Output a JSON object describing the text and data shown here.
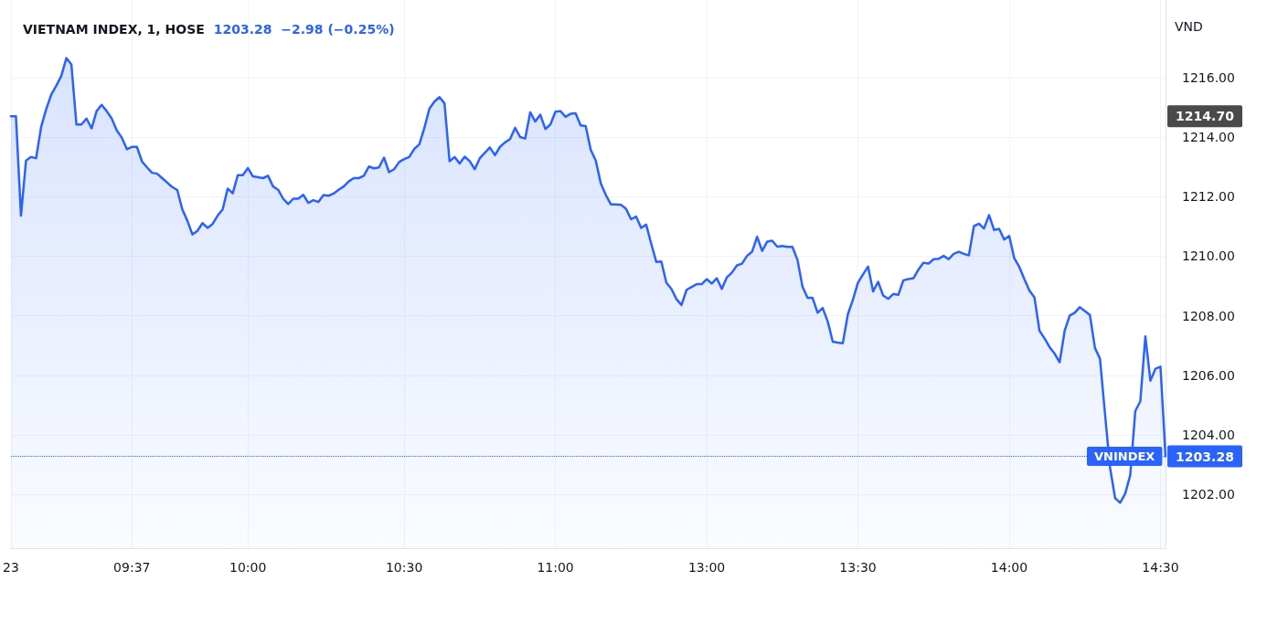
{
  "chart_data": {
    "type": "area",
    "title": "VIETNAM INDEX, 1, HOSE",
    "subtitle": "1203.28  −2.98 (−0.25%)",
    "ylabel": "VND",
    "categories": [
      "23",
      null,
      null,
      null,
      null,
      null,
      null,
      null,
      null,
      null,
      null,
      null,
      null,
      null,
      null,
      null,
      null,
      null,
      null,
      null,
      null,
      null,
      null,
      null,
      "09:37",
      null,
      null,
      null,
      null,
      null,
      null,
      null,
      null,
      null,
      null,
      null,
      null,
      null,
      null,
      null,
      null,
      null,
      null,
      null,
      null,
      null,
      null,
      "10:00",
      null,
      null,
      null,
      null,
      null,
      null,
      null,
      null,
      null,
      null,
      null,
      null,
      null,
      null,
      null,
      null,
      null,
      null,
      null,
      null,
      null,
      null,
      null,
      null,
      null,
      null,
      null,
      null,
      null,
      null,
      "10:30",
      null,
      null,
      null,
      null,
      null,
      null,
      null,
      null,
      null,
      null,
      null,
      null,
      null,
      null,
      null,
      null,
      null,
      null,
      null,
      null,
      null,
      null,
      null,
      null,
      null,
      null,
      null,
      null,
      null,
      "11:00",
      null,
      null,
      null,
      null,
      null,
      null,
      null,
      null,
      null,
      null,
      null,
      null,
      null,
      null,
      null,
      null,
      null,
      null,
      null,
      null,
      null,
      null,
      null,
      null,
      null,
      null,
      null,
      null,
      null,
      "13:00",
      null,
      null,
      null,
      null,
      null,
      null,
      null,
      null,
      null,
      null,
      null,
      null,
      null,
      null,
      null,
      null,
      null,
      null,
      null,
      null,
      null,
      null,
      null,
      null,
      null,
      null,
      null,
      null,
      null,
      "13:30",
      null,
      null,
      null,
      null,
      null,
      null,
      null,
      null,
      null,
      null,
      null,
      null,
      null,
      null,
      null,
      null,
      null,
      null,
      null,
      null,
      null,
      null,
      null,
      null,
      null,
      null,
      null,
      null,
      null,
      "14:00",
      null,
      null,
      null,
      null,
      null,
      null,
      null,
      null,
      null,
      null,
      null,
      null,
      null,
      null,
      null,
      null,
      null,
      null,
      null,
      null,
      null,
      null,
      null,
      null,
      null,
      null,
      null,
      null,
      null,
      "14:30",
      null
    ],
    "series": [
      {
        "color": "#2962ff",
        "values": [
          1214.7,
          1214.7,
          1211.36,
          1213.21,
          1213.33,
          1213.29,
          1214.34,
          1214.93,
          1215.42,
          1215.72,
          1216.05,
          1216.65,
          1216.44,
          1214.42,
          1214.42,
          1214.62,
          1214.29,
          1214.87,
          1215.08,
          1214.87,
          1214.62,
          1214.22,
          1213.98,
          1213.59,
          1213.67,
          1213.67,
          1213.18,
          1212.98,
          1212.8,
          1212.77,
          1212.62,
          1212.47,
          1212.32,
          1212.22,
          1211.57,
          1211.19,
          1210.73,
          1210.85,
          1211.11,
          1210.95,
          1211.08,
          1211.36,
          1211.57,
          1212.27,
          1212.11,
          1212.72,
          1212.72,
          1212.96,
          1212.68,
          1212.65,
          1212.62,
          1212.7,
          1212.34,
          1212.23,
          1211.93,
          1211.75,
          1211.93,
          1211.93,
          1212.06,
          1211.79,
          1211.88,
          1211.82,
          1212.05,
          1212.03,
          1212.1,
          1212.23,
          1212.34,
          1212.51,
          1212.62,
          1212.62,
          1212.7,
          1213.01,
          1212.95,
          1212.98,
          1213.31,
          1212.82,
          1212.92,
          1213.16,
          1213.26,
          1213.33,
          1213.6,
          1213.75,
          1214.3,
          1214.95,
          1215.19,
          1215.34,
          1215.13,
          1213.19,
          1213.33,
          1213.11,
          1213.34,
          1213.19,
          1212.92,
          1213.29,
          null,
          1213.65,
          1213.39,
          1213.67,
          1213.82,
          1213.93,
          1214.31,
          1214.0,
          1213.95,
          1214.83,
          1214.52,
          1214.75,
          1214.27,
          1214.42,
          1214.85,
          1214.87,
          1214.68,
          1214.78,
          1214.8,
          1214.39,
          1214.37,
          1213.57,
          1213.21,
          1212.44,
          1212.05,
          1211.74,
          1211.74,
          1211.72,
          1211.59,
          1211.24,
          1211.33,
          1210.95,
          1211.06,
          1210.42,
          1209.81,
          1209.82,
          1209.11,
          1208.9,
          1208.56,
          1208.36,
          1208.87,
          null,
          1209.06,
          1209.06,
          1209.23,
          1209.08,
          1209.26,
          1208.9,
          1209.29,
          1209.45,
          1209.69,
          1209.75,
          1210.01,
          1210.15,
          1210.65,
          1210.18,
          1210.49,
          1210.52,
          1210.32,
          1210.34,
          1210.31,
          1210.31,
          1209.88,
          1208.98,
          1208.6,
          1208.6,
          1208.1,
          1208.26,
          1207.81,
          1207.13,
          1207.1,
          1207.08,
          1208.05,
          1208.54,
          1209.11,
          1209.39,
          1209.65,
          1208.82,
          1209.14,
          1208.68,
          1208.57,
          1208.73,
          1208.7,
          1209.19,
          1209.23,
          1209.26,
          1209.55,
          1209.78,
          1209.75,
          1209.9,
          1209.91,
          1210.01,
          1209.9,
          1210.08,
          1210.15,
          1210.08,
          1210.03,
          1211.01,
          1211.09,
          1210.93,
          1211.38,
          1210.88,
          1210.92,
          1210.56,
          1210.68,
          1209.93,
          1209.64,
          1209.23,
          1208.85,
          1208.62,
          1207.5,
          1207.24,
          1206.95,
          1206.73,
          1206.44,
          1207.5,
          1208.01,
          1208.1,
          1208.29,
          1208.16,
          1208.03,
          1206.92,
          1206.56,
          1204.7,
          1202.9,
          1201.88,
          1201.72,
          1202.03,
          1202.65,
          1204.8,
          1205.13,
          1207.31,
          1205.82,
          1206.22,
          1206.29,
          1203.28
        ]
      }
    ],
    "ylim": [
      1200.2,
      1218.6
    ],
    "yticks": [
      {
        "value": 1202,
        "label": "1202.00"
      },
      {
        "value": 1204,
        "label": "1204.00"
      },
      {
        "value": 1206,
        "label": "1206.00"
      },
      {
        "value": 1208,
        "label": "1208.00"
      },
      {
        "value": 1210,
        "label": "1210.00"
      },
      {
        "value": 1212,
        "label": "1212.00"
      },
      {
        "value": 1214,
        "label": "1214.00"
      },
      {
        "value": 1216,
        "label": "1216.00"
      }
    ],
    "ref_lines": [
      {
        "axis": "y",
        "value": 1203.28,
        "label": "VNINDEX",
        "color": "#2962ff",
        "line_style": "dotted"
      }
    ],
    "annotations": [
      "1214.70",
      "1203.28"
    ],
    "grid": true,
    "marker": "none",
    "line_style": "solid"
  }
}
